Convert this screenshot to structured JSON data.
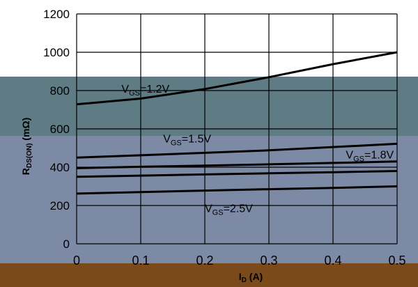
{
  "chart_data": {
    "type": "line",
    "xlabel": "ID (A)",
    "ylabel": "RDS(ON) (mΩ)",
    "x_ticks": [
      "0",
      "0.1",
      "0.2",
      "0.3",
      "0.4",
      "0.5"
    ],
    "y_ticks": [
      "0",
      "200",
      "400",
      "600",
      "800",
      "1000",
      "1200"
    ],
    "xlim": [
      0,
      0.5
    ],
    "ylim": [
      0,
      1200
    ],
    "grid": true,
    "colors": {
      "band_top": "#ffffff",
      "band_middle": "#5f7b84",
      "band_lower": "#7d8aa6",
      "band_bottom": "#7a4a1a",
      "line": "#000000"
    },
    "x": [
      0,
      0.1,
      0.2,
      0.3,
      0.4,
      0.5
    ],
    "series": [
      {
        "name": "VGS=1.2V",
        "values": [
          728,
          758,
          808,
          870,
          938,
          1000
        ]
      },
      {
        "name": "VGS=1.5V",
        "values": [
          450,
          462,
          475,
          488,
          505,
          522
        ]
      },
      {
        "name": "VGS=1.8V",
        "values": [
          395,
          402,
          408,
          415,
          422,
          430
        ]
      },
      {
        "name": "",
        "values": [
          350,
          356,
          362,
          368,
          374,
          380
        ]
      },
      {
        "name": "VGS=2.5V",
        "values": [
          262,
          270,
          278,
          285,
          292,
          300
        ]
      }
    ]
  }
}
